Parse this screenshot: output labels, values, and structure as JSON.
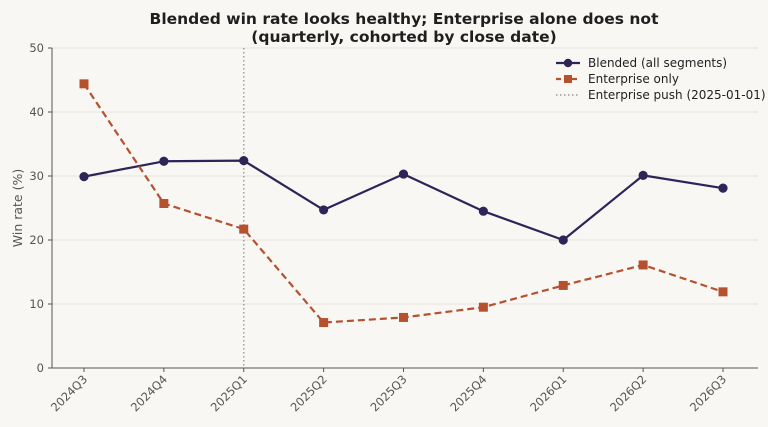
{
  "chart_data": {
    "type": "line",
    "title_lines": [
      "Blended win rate looks healthy; Enterprise alone does not",
      "(quarterly, cohorted by close date)"
    ],
    "xlabel": "",
    "ylabel": "Win rate (%)",
    "ylim": [
      0,
      50
    ],
    "yticks": [
      0,
      10,
      20,
      30,
      40,
      50
    ],
    "categories": [
      "2024Q3",
      "2024Q4",
      "2025Q1",
      "2025Q2",
      "2025Q3",
      "2025Q4",
      "2026Q1",
      "2026Q2",
      "2026Q3"
    ],
    "series": [
      {
        "name": "Blended (all segments)",
        "color": "#2e2457",
        "line_style": "solid",
        "marker": "circle",
        "values": [
          29.9,
          32.3,
          32.4,
          24.7,
          30.3,
          24.5,
          20.0,
          30.1,
          28.1
        ]
      },
      {
        "name": "Enterprise only",
        "color": "#b5512f",
        "line_style": "dashed",
        "marker": "square",
        "values": [
          44.4,
          25.7,
          21.7,
          7.1,
          7.9,
          9.5,
          12.9,
          16.1,
          11.9
        ]
      }
    ],
    "annotations": [
      {
        "type": "vline",
        "x": "2025Q1",
        "label": "Enterprise push (2025-01-01)",
        "color": "#999999",
        "line_style": "dotted"
      }
    ],
    "grid": "horizontal",
    "legend_position": "top-right"
  }
}
